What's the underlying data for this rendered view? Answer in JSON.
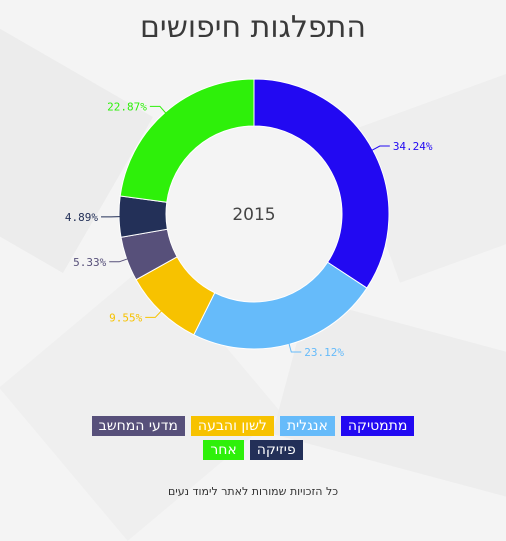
{
  "chart_data": {
    "type": "pie",
    "title": "התפלגות חיפושים",
    "center_label": "2015",
    "slices": [
      {
        "name": "מתמטיקה",
        "value": 34.24,
        "label": "34.24%",
        "color": "#2209f2"
      },
      {
        "name": "אנגלית",
        "value": 23.12,
        "label": "23.12%",
        "color": "#66bbfa"
      },
      {
        "name": "לשון והבעה",
        "value": 9.55,
        "label": "9.55%",
        "color": "#f7c200"
      },
      {
        "name": "מדעי המחשב",
        "value": 5.33,
        "label": "5.33%",
        "color": "#57507a"
      },
      {
        "name": "פיזיקה",
        "value": 4.89,
        "label": "4.89%",
        "color": "#233058"
      },
      {
        "name": "אחר",
        "value": 22.87,
        "label": "22.87%",
        "color": "#2ef00a"
      }
    ],
    "legend_placement": "bottom"
  },
  "legend": {
    "row1": [
      {
        "label": "מתמטיקה",
        "color": "#2209f2"
      },
      {
        "label": "אנגלית",
        "color": "#66bbfa"
      },
      {
        "label": "לשון והבעה",
        "color": "#f7c200"
      },
      {
        "label": "מדעי המחשב",
        "color": "#57507a"
      }
    ],
    "row2": [
      {
        "label": "פיזיקה",
        "color": "#233058"
      },
      {
        "label": "אחר",
        "color": "#2ef00a"
      }
    ]
  },
  "footer": "כל הזכויות שמורות לאתר לימוד נעים"
}
